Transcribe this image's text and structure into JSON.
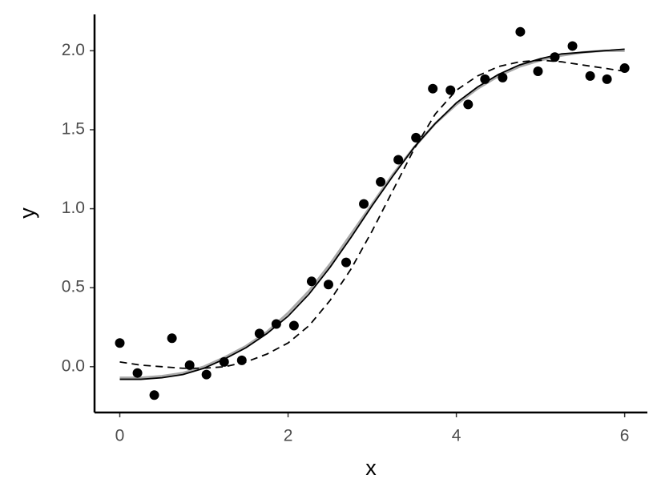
{
  "chart_data": {
    "type": "scatter",
    "x_label": "x",
    "y_label": "y",
    "xlim": [
      -0.3,
      6.27
    ],
    "ylim": [
      -0.29,
      2.23
    ],
    "xticks": [
      0,
      2,
      4,
      6
    ],
    "yticks": [
      {
        "value": 0,
        "label": "0.0"
      },
      {
        "value": 0.5,
        "label": "0.5"
      },
      {
        "value": 1,
        "label": "1.0"
      },
      {
        "value": 1.5,
        "label": "1.5"
      },
      {
        "value": 2,
        "label": "2.0"
      }
    ],
    "grid": false,
    "series": [
      {
        "type": "line",
        "color": "#aaaaaa",
        "dash": "solid",
        "x": [
          0,
          0.25,
          0.5,
          0.75,
          1,
          1.25,
          1.5,
          1.75,
          2,
          2.25,
          2.5,
          2.75,
          3,
          3.25,
          3.5,
          3.75,
          4,
          4.25,
          4.5,
          4.75,
          5,
          5.25,
          5.5,
          5.75,
          6
        ],
        "values": [
          -0.07,
          -0.07,
          -0.06,
          -0.04,
          0.0,
          0.06,
          0.13,
          0.22,
          0.34,
          0.48,
          0.65,
          0.84,
          1.03,
          1.22,
          1.39,
          1.54,
          1.66,
          1.76,
          1.84,
          1.9,
          1.94,
          1.97,
          1.99,
          2.0,
          2.0
        ]
      },
      {
        "type": "line",
        "color": "#000000",
        "dash": "solid",
        "x": [
          0,
          0.25,
          0.5,
          0.75,
          1,
          1.25,
          1.5,
          1.75,
          2,
          2.25,
          2.5,
          2.75,
          3,
          3.25,
          3.5,
          3.75,
          4,
          4.25,
          4.5,
          4.75,
          5,
          5.25,
          5.5,
          5.75,
          6
        ],
        "values": [
          -0.08,
          -0.08,
          -0.07,
          -0.05,
          -0.01,
          0.05,
          0.12,
          0.21,
          0.32,
          0.46,
          0.63,
          0.82,
          1.02,
          1.21,
          1.39,
          1.54,
          1.67,
          1.77,
          1.85,
          1.91,
          1.95,
          1.98,
          1.99,
          2.0,
          2.01
        ]
      },
      {
        "type": "line",
        "color": "#000000",
        "dash": "dashed",
        "x": [
          0,
          0.25,
          0.5,
          0.75,
          1,
          1.25,
          1.5,
          1.75,
          2,
          2.25,
          2.5,
          2.75,
          3,
          3.25,
          3.5,
          3.75,
          4,
          4.25,
          4.5,
          4.75,
          5,
          5.25,
          5.5,
          5.75,
          6
        ],
        "values": [
          0.03,
          0.01,
          0.0,
          -0.01,
          -0.01,
          0.0,
          0.03,
          0.08,
          0.15,
          0.26,
          0.42,
          0.62,
          0.86,
          1.12,
          1.38,
          1.6,
          1.75,
          1.84,
          1.9,
          1.93,
          1.94,
          1.93,
          1.91,
          1.89,
          1.87
        ]
      },
      {
        "type": "scatter",
        "color": "#000000",
        "x": [
          0,
          0.21,
          0.41,
          0.62,
          0.83,
          1.03,
          1.24,
          1.45,
          1.66,
          1.86,
          2.07,
          2.28,
          2.48,
          2.69,
          2.9,
          3.1,
          3.31,
          3.52,
          3.72,
          3.93,
          4.14,
          4.34,
          4.55,
          4.76,
          4.97,
          5.17,
          5.38,
          5.59,
          5.79,
          6
        ],
        "values": [
          0.15,
          -0.04,
          -0.18,
          0.18,
          0.01,
          -0.05,
          0.03,
          0.04,
          0.21,
          0.27,
          0.26,
          0.54,
          0.52,
          0.66,
          1.03,
          1.17,
          1.31,
          1.45,
          1.76,
          1.75,
          1.66,
          1.82,
          1.83,
          2.12,
          1.87,
          1.96,
          2.03,
          1.84,
          1.82,
          1.89
        ]
      }
    ]
  }
}
